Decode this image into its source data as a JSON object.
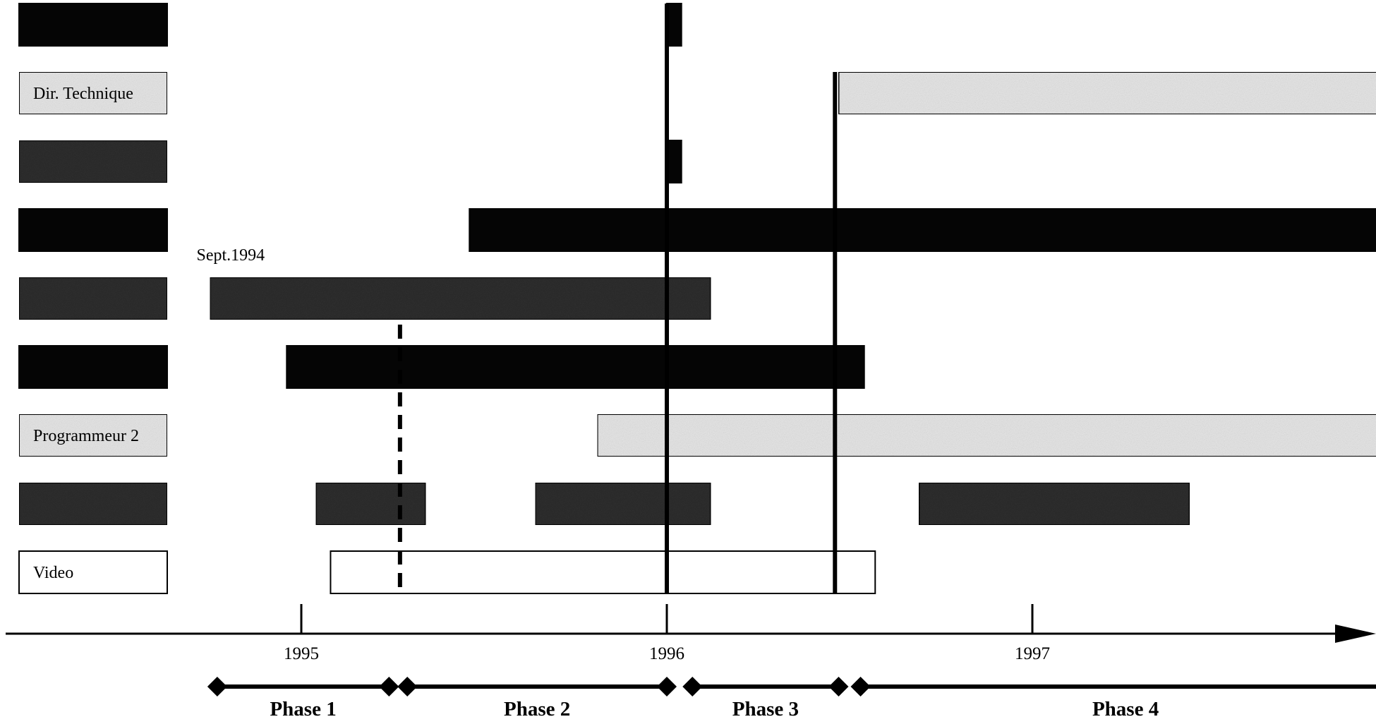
{
  "chart_data": {
    "type": "gantt",
    "title": "",
    "x_unit": "year",
    "xlim": [
      1994.58,
      1997.98
    ],
    "axis_ticks": [
      {
        "value": 1995.0,
        "label": "1995"
      },
      {
        "value": 1996.0,
        "label": "1996"
      },
      {
        "value": 1997.0,
        "label": "1997"
      }
    ],
    "rows": [
      {
        "label": "",
        "label_style": "black",
        "bars": [
          {
            "start": 1996.0,
            "end": 1996.04,
            "style": "black"
          }
        ]
      },
      {
        "label": "Dir. Technique",
        "label_style": "light",
        "bars": [
          {
            "start": 1996.47,
            "end": 1997.98,
            "style": "light"
          }
        ]
      },
      {
        "label": "",
        "label_style": "dark",
        "bars": [
          {
            "start": 1996.0,
            "end": 1996.04,
            "style": "black"
          }
        ]
      },
      {
        "label": "",
        "label_style": "black",
        "bars": [
          {
            "start": 1995.46,
            "end": 1997.98,
            "style": "black"
          }
        ]
      },
      {
        "label": "",
        "label_style": "dark",
        "bars": [
          {
            "start": 1994.75,
            "end": 1996.12,
            "style": "dark"
          }
        ]
      },
      {
        "label": "",
        "label_style": "black",
        "bars": [
          {
            "start": 1994.96,
            "end": 1996.54,
            "style": "black"
          }
        ]
      },
      {
        "label": "Programmeur 2",
        "label_style": "light",
        "bars": [
          {
            "start": 1995.81,
            "end": 1997.98,
            "style": "light"
          }
        ]
      },
      {
        "label": "",
        "label_style": "dark",
        "bars": [
          {
            "start": 1995.04,
            "end": 1995.34,
            "style": "dark"
          },
          {
            "start": 1995.64,
            "end": 1996.12,
            "style": "dark"
          },
          {
            "start": 1996.69,
            "end": 1997.43,
            "style": "dark"
          }
        ]
      },
      {
        "label": "Video",
        "label_style": "white",
        "bars": [
          {
            "start": 1995.08,
            "end": 1996.57,
            "style": "white"
          }
        ]
      }
    ],
    "annotations": [
      {
        "text": "Sept.1994",
        "x": 1994.75
      }
    ],
    "reference_lines": [
      {
        "x": 1996.0,
        "style": "solid",
        "from_row": 0,
        "to_row": 8
      },
      {
        "x": 1996.46,
        "style": "solid",
        "from_row": 1,
        "to_row": 8
      },
      {
        "x": 1995.27,
        "style": "dashed",
        "from_row": 5,
        "to_row": 8
      }
    ],
    "phases": [
      {
        "label": "Phase 1",
        "start": 1994.77,
        "end": 1995.24
      },
      {
        "label": "Phase 2",
        "start": 1995.29,
        "end": 1996.0
      },
      {
        "label": "Phase 3",
        "start": 1996.07,
        "end": 1996.47
      },
      {
        "label": "Phase 4",
        "start": 1996.53,
        "end": 1997.98
      }
    ],
    "colors": {
      "black": "#050505",
      "dark": "#2e2e2e",
      "light": "#e6e6e6",
      "white": "#ffffff",
      "line": "#000000"
    }
  }
}
